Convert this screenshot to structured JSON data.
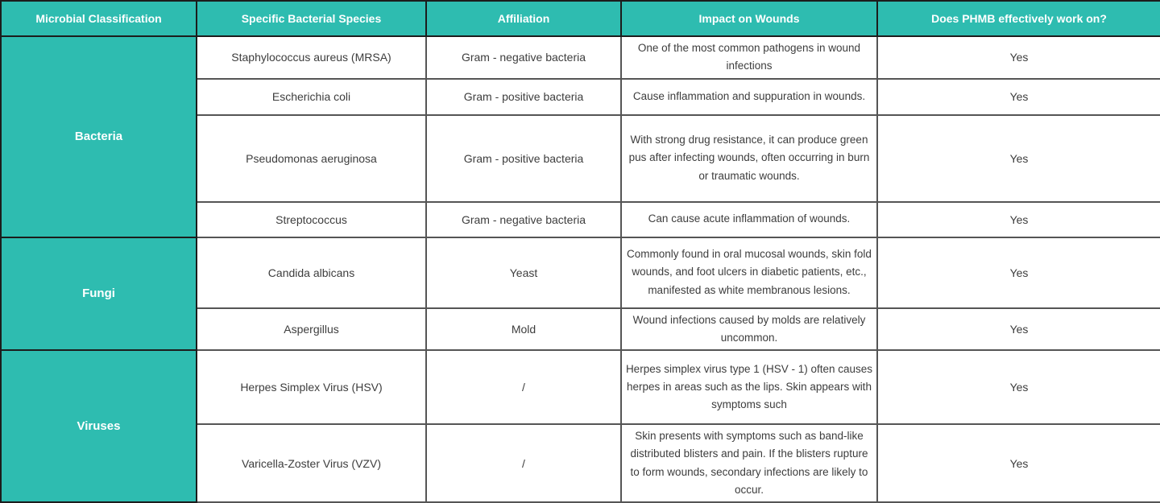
{
  "colors": {
    "header_bg": "#2ebcb0",
    "header_text": "#ffffff",
    "body_text": "#3d3d3d"
  },
  "table": {
    "headers": [
      "Microbial Classification",
      "Specific Bacterial Species",
      "Affiliation",
      "Impact on Wounds",
      "Does PHMB effectively work on?"
    ],
    "groups": [
      {
        "classification": "Bacteria",
        "rows": [
          {
            "species": "Staphylococcus aureus (MRSA)",
            "affiliation": "Gram - negative bacteria",
            "impact": "One of the most common pathogens in wound infections",
            "phmb": "Yes"
          },
          {
            "species": "Escherichia coli",
            "affiliation": "Gram - positive bacteria",
            "impact": "Cause inflammation and suppuration in wounds.",
            "phmb": "Yes"
          },
          {
            "species": "Pseudomonas aeruginosa",
            "affiliation": "Gram - positive bacteria",
            "impact": "With strong drug resistance, it can produce green pus after infecting wounds, often occurring in burn or traumatic wounds.",
            "phmb": "Yes"
          },
          {
            "species": "Streptococcus",
            "affiliation": "Gram - negative bacteria",
            "impact": "Can cause acute inflammation of wounds.",
            "phmb": "Yes"
          }
        ]
      },
      {
        "classification": "Fungi",
        "rows": [
          {
            "species": "Candida albicans",
            "affiliation": "Yeast",
            "impact": "Commonly found in oral mucosal wounds, skin fold wounds, and foot ulcers in diabetic patients, etc., manifested as white membranous lesions.",
            "phmb": "Yes"
          },
          {
            "species": "Aspergillus",
            "affiliation": "Mold",
            "impact": "Wound infections caused by molds are relatively uncommon.",
            "phmb": "Yes"
          }
        ]
      },
      {
        "classification": "Viruses",
        "rows": [
          {
            "species": "Herpes Simplex Virus (HSV)",
            "affiliation": "/",
            "impact": "Herpes simplex virus type 1 (HSV - 1) often causes herpes in areas such as the lips. Skin appears with symptoms such",
            "phmb": "Yes"
          },
          {
            "species": "Varicella-Zoster Virus (VZV)",
            "affiliation": "/",
            "impact": "Skin presents with symptoms such as band-like distributed blisters and pain. If the blisters rupture to form wounds, secondary infections are likely to occur.",
            "phmb": "Yes"
          }
        ]
      }
    ]
  }
}
